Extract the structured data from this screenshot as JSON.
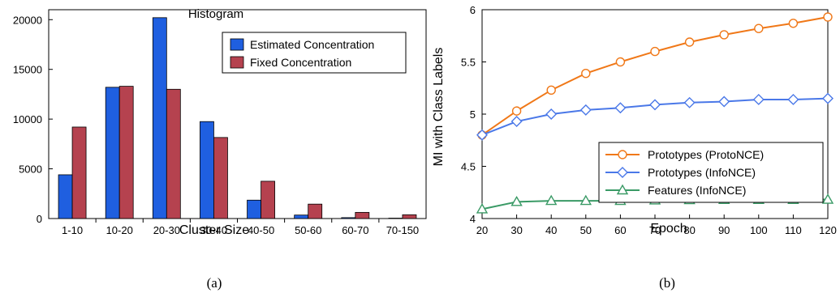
{
  "chart_data": [
    {
      "type": "bar",
      "title": "Histogram",
      "xlabel": "Cluster Size",
      "ylabel": "",
      "caption": "(a)",
      "categories": [
        "1-10",
        "10-20",
        "20-30",
        "30-40",
        "40-50",
        "50-60",
        "60-70",
        "70-150"
      ],
      "ylim": [
        0,
        21000
      ],
      "yticks": [
        0,
        5000,
        10000,
        15000,
        20000
      ],
      "legend_position": "top-right",
      "grid": false,
      "series": [
        {
          "name": "Estimated Concentration",
          "color": "#1f5fe0",
          "values": [
            4400,
            13200,
            20200,
            9750,
            1850,
            350,
            90,
            40
          ]
        },
        {
          "name": "Fixed Concentration",
          "color": "#b5424f",
          "values": [
            9200,
            13300,
            13000,
            8150,
            3750,
            1450,
            620,
            380
          ]
        }
      ]
    },
    {
      "type": "line",
      "title": "",
      "xlabel": "Epoch",
      "ylabel": "MI with Class Labels",
      "caption": "(b)",
      "x": [
        20,
        30,
        40,
        50,
        60,
        70,
        80,
        90,
        100,
        110,
        120
      ],
      "xlim": [
        20,
        120
      ],
      "ylim": [
        4,
        6
      ],
      "yticks": [
        "4",
        "4.5",
        "5",
        "5.5",
        "6"
      ],
      "legend_position": "center-right",
      "grid": false,
      "series": [
        {
          "name": "Prototypes (ProtoNCE)",
          "color": "#f07818",
          "marker": "circle",
          "values": [
            4.8,
            5.03,
            5.23,
            5.39,
            5.5,
            5.6,
            5.69,
            5.76,
            5.82,
            5.87,
            5.93
          ]
        },
        {
          "name": "Prototypes (InfoNCE)",
          "color": "#4a78e8",
          "marker": "diamond",
          "values": [
            4.8,
            4.93,
            5.0,
            5.04,
            5.06,
            5.09,
            5.11,
            5.12,
            5.14,
            5.14,
            5.15
          ]
        },
        {
          "name": "Features (InfoNCE)",
          "color": "#3a9a66",
          "marker": "triangle",
          "values": [
            4.09,
            4.16,
            4.17,
            4.17,
            4.17,
            4.175,
            4.178,
            4.18,
            4.18,
            4.18,
            4.182
          ]
        }
      ]
    }
  ]
}
